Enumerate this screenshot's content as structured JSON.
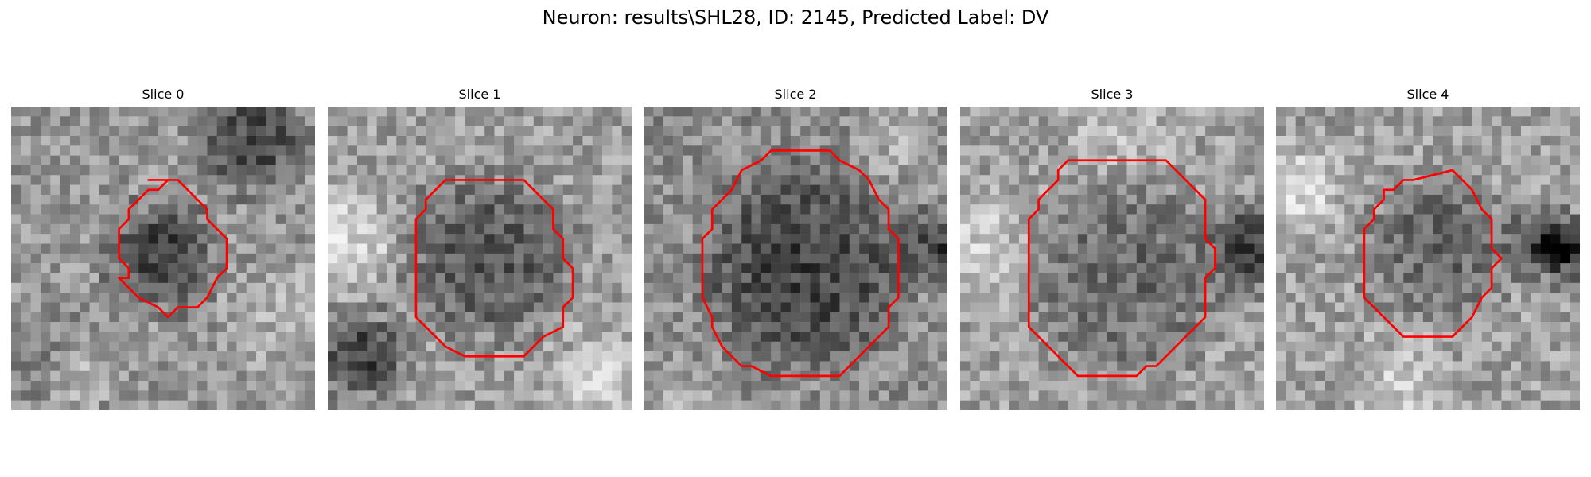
{
  "figure": {
    "title": "Neuron: results\\SHL28, ID: 2145, Predicted Label: DV"
  },
  "colors": {
    "contour": "#ff0000",
    "background": "#ffffff",
    "colormap": "grayscale"
  },
  "panels": [
    {
      "title": "Slice 0"
    },
    {
      "title": "Slice 1"
    },
    {
      "title": "Slice 2"
    },
    {
      "title": "Slice 3"
    },
    {
      "title": "Slice 4"
    }
  ]
}
